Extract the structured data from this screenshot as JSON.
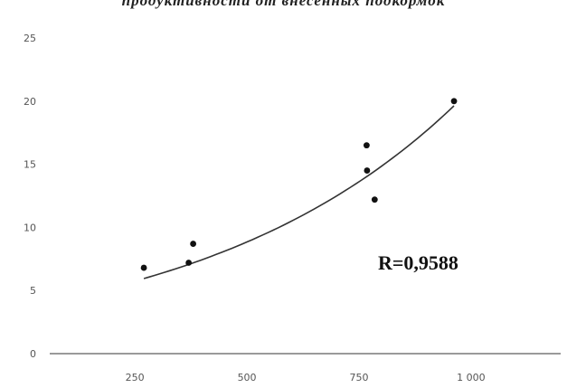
{
  "chart_data": {
    "type": "scatter",
    "title": "продуктивности от внесенных подкормок",
    "xlabel": "",
    "ylabel": "",
    "xlim": [
      60,
      1200
    ],
    "ylim": [
      0,
      25
    ],
    "x_ticks": [
      250,
      500,
      750,
      1000
    ],
    "x_tick_labels": [
      "250",
      "500",
      "750",
      "1 000"
    ],
    "y_ticks": [
      0,
      5,
      10,
      15,
      20,
      25
    ],
    "y_tick_labels": [
      "0",
      "5",
      "10",
      "15",
      "20",
      "25"
    ],
    "grid": false,
    "points": [
      {
        "x": 270,
        "y": 6.8
      },
      {
        "x": 370,
        "y": 7.2
      },
      {
        "x": 380,
        "y": 8.7
      },
      {
        "x": 767,
        "y": 16.5
      },
      {
        "x": 768,
        "y": 14.5
      },
      {
        "x": 785,
        "y": 12.2
      },
      {
        "x": 962,
        "y": 20.0
      }
    ],
    "trendline": {
      "type": "exponential",
      "x_range": [
        270,
        962
      ],
      "a": 3.73,
      "b": 0.001726
    },
    "annotations": [
      "R=0,9588"
    ],
    "colors": {
      "points": "#111111",
      "trendline": "#333333",
      "axis": "#9a9a9a"
    }
  }
}
